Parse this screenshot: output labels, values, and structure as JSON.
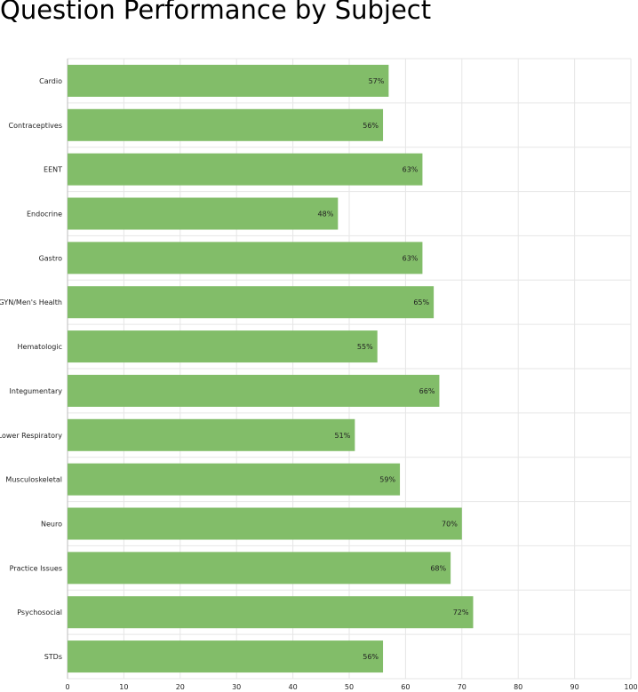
{
  "chart_data": {
    "type": "bar",
    "orientation": "horizontal",
    "title": "Question Performance by Subject",
    "categories": [
      "Cardio",
      "Contraceptives",
      "EENT",
      "Endocrine",
      "Gastro",
      "GYN/Men's Health",
      "Hematologic",
      "Integumentary",
      "Lower Respiratory",
      "Musculoskeletal",
      "Neuro",
      "Practice Issues",
      "Psychosocial",
      "STDs"
    ],
    "values": [
      57,
      56,
      63,
      48,
      63,
      65,
      55,
      66,
      51,
      59,
      70,
      68,
      72,
      56
    ],
    "data_labels": [
      "57%",
      "56%",
      "63%",
      "48%",
      "63%",
      "65%",
      "55%",
      "66%",
      "51%",
      "59%",
      "70%",
      "68%",
      "72%",
      "56%"
    ],
    "xlim": [
      0,
      100
    ],
    "xticks": [
      "0",
      "10",
      "20",
      "30",
      "40",
      "50",
      "60",
      "70",
      "80",
      "90",
      "100"
    ],
    "grid": true,
    "legend": "none",
    "bar_color": "#82bd69"
  }
}
